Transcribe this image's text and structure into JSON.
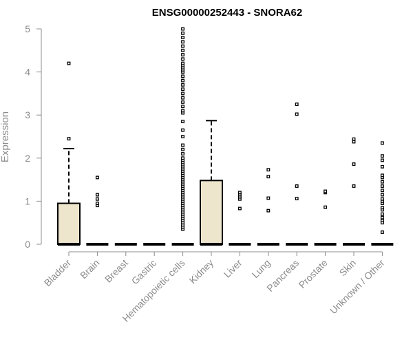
{
  "chart_data": {
    "type": "box",
    "title": "ENSG00000252443 - SNORA62",
    "ylabel": "Expression",
    "xlabel": "",
    "ylim": [
      0,
      5
    ],
    "yticks": [
      0,
      1,
      2,
      3,
      4,
      5
    ],
    "grid": false,
    "box_color": "#ede6cc",
    "categories": [
      "Bladder",
      "Brain",
      "Breast",
      "Gastric",
      "Hematopoietic cells",
      "Kidney",
      "Liver",
      "Lung",
      "Pancreas",
      "Prostate",
      "Skin",
      "Unknown / Other"
    ],
    "boxes": [
      {
        "category": "Bladder",
        "q1": 0,
        "median": 0,
        "q3": 0.95,
        "whisker_low": 0,
        "whisker_high": 2.22,
        "outliers": [
          2.45,
          4.2
        ]
      },
      {
        "category": "Brain",
        "q1": 0,
        "median": 0,
        "q3": 0,
        "whisker_low": 0,
        "whisker_high": 0,
        "outliers": [
          0.9,
          0.95,
          1.05,
          1.15,
          1.55
        ]
      },
      {
        "category": "Breast",
        "q1": 0,
        "median": 0,
        "q3": 0,
        "whisker_low": 0,
        "whisker_high": 0,
        "outliers": []
      },
      {
        "category": "Gastric",
        "q1": 0,
        "median": 0,
        "q3": 0,
        "whisker_low": 0,
        "whisker_high": 0,
        "outliers": []
      },
      {
        "category": "Hematopoietic cells",
        "q1": 0,
        "median": 0,
        "q3": 0,
        "whisker_low": 0,
        "whisker_high": 0,
        "outliers": [
          0.35,
          0.4,
          0.45,
          0.5,
          0.55,
          0.6,
          0.65,
          0.7,
          0.75,
          0.8,
          0.85,
          0.9,
          0.95,
          1.0,
          1.05,
          1.1,
          1.15,
          1.2,
          1.25,
          1.3,
          1.35,
          1.4,
          1.45,
          1.5,
          1.55,
          1.6,
          1.65,
          1.7,
          1.75,
          1.8,
          1.85,
          1.9,
          1.95,
          2.0,
          2.1,
          2.2,
          2.3,
          2.5,
          2.65,
          2.85,
          3.05,
          3.1,
          3.2,
          3.3,
          3.4,
          3.5,
          3.6,
          3.7,
          3.8,
          3.9,
          4.0,
          4.05,
          4.1,
          4.15,
          4.2,
          4.3,
          4.4,
          4.5,
          4.6,
          4.7,
          4.8,
          4.9,
          5.0
        ]
      },
      {
        "category": "Kidney",
        "q1": 0,
        "median": 0,
        "q3": 1.48,
        "whisker_low": 0,
        "whisker_high": 2.87,
        "outliers": []
      },
      {
        "category": "Liver",
        "q1": 0,
        "median": 0,
        "q3": 0,
        "whisker_low": 0,
        "whisker_high": 0,
        "outliers": [
          0.83,
          1.05,
          1.1,
          1.15,
          1.2
        ]
      },
      {
        "category": "Lung",
        "q1": 0,
        "median": 0,
        "q3": 0,
        "whisker_low": 0,
        "whisker_high": 0,
        "outliers": [
          0.78,
          1.07,
          1.57,
          1.73
        ]
      },
      {
        "category": "Pancreas",
        "q1": 0,
        "median": 0,
        "q3": 0,
        "whisker_low": 0,
        "whisker_high": 0,
        "outliers": [
          1.06,
          1.35,
          3.02,
          3.25
        ]
      },
      {
        "category": "Prostate",
        "q1": 0,
        "median": 0,
        "q3": 0,
        "whisker_low": 0,
        "whisker_high": 0,
        "outliers": [
          0.86,
          1.2,
          1.23
        ]
      },
      {
        "category": "Skin",
        "q1": 0,
        "median": 0,
        "q3": 0,
        "whisker_low": 0,
        "whisker_high": 0,
        "outliers": [
          1.35,
          1.86,
          2.38,
          2.44
        ]
      },
      {
        "category": "Unknown / Other",
        "q1": 0,
        "median": 0,
        "q3": 0,
        "whisker_low": 0,
        "whisker_high": 0,
        "outliers": [
          0.28,
          0.5,
          0.55,
          0.62,
          0.7,
          0.8,
          0.85,
          0.95,
          1.0,
          1.05,
          1.15,
          1.25,
          1.35,
          1.45,
          1.55,
          1.6,
          1.8,
          1.95,
          2.05,
          2.35
        ]
      }
    ]
  }
}
